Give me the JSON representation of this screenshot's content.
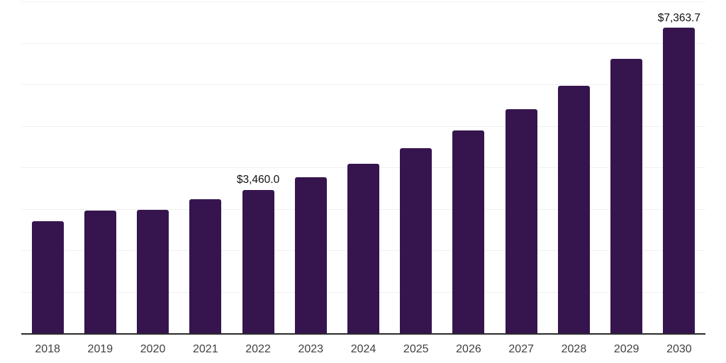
{
  "chart": {
    "background_color": "#ffffff",
    "bar_color": "#36154e",
    "gridline_color": "#f0f0f0",
    "axis_line_color": "#2b2b2b",
    "tick_label_color": "#404040",
    "data_label_color": "#111111"
  },
  "chart_data": {
    "type": "bar",
    "title": "",
    "xlabel": "",
    "ylabel": "",
    "categories": [
      "2018",
      "2019",
      "2020",
      "2021",
      "2022",
      "2023",
      "2024",
      "2025",
      "2026",
      "2027",
      "2028",
      "2029",
      "2030"
    ],
    "values": [
      2700,
      2950,
      2970,
      3230,
      3460.0,
      3760,
      4090,
      4460,
      4890,
      5400,
      5970,
      6620,
      7363.7
    ],
    "annotations": [
      {
        "category": "2022",
        "text": "$3,460.0"
      },
      {
        "category": "2030",
        "text": "$7,363.7"
      }
    ],
    "ylim": [
      0,
      8000
    ],
    "grid_step": 1000,
    "grid": true,
    "legend": false
  }
}
